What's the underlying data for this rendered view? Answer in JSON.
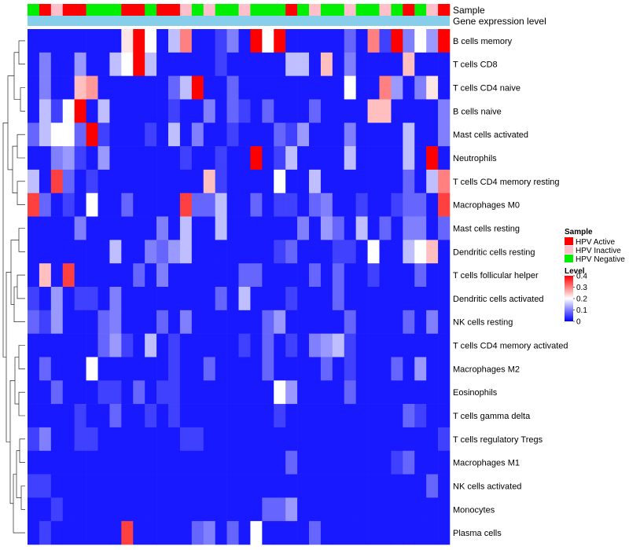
{
  "chart_data": {
    "type": "heatmap",
    "annotation_labels": [
      "Sample",
      "Gene expression level"
    ],
    "rows": [
      "B cells memory",
      "T cells CD8",
      "T cells CD4 naive",
      "B cells naive",
      "Mast cells activated",
      "Neutrophils",
      "T cells CD4 memory resting",
      "Macrophages M0",
      "Mast cells resting",
      "Dendritic cells resting",
      "T cells follicular helper",
      "Dendritic cells activated",
      "NK cells resting",
      "T cells CD4 memory activated",
      "Macrophages M2",
      "Eosinophils",
      "T cells gamma delta",
      "T cells regulatory  Tregs",
      "Macrophages M1",
      "NK cells activated",
      "Monocytes",
      "Plasma cells"
    ],
    "sample_groups": [
      "Negative",
      "Active",
      "Inactive",
      "Active",
      "Active",
      "Negative",
      "Negative",
      "Negative",
      "Active",
      "Active",
      "Negative",
      "Active",
      "Active",
      "Inactive",
      "Negative",
      "Inactive",
      "Negative",
      "Negative",
      "Inactive",
      "Negative",
      "Negative",
      "Negative",
      "Active",
      "Negative",
      "Inactive",
      "Negative",
      "Negative",
      "Inactive",
      "Negative",
      "Negative",
      "Inactive",
      "Negative",
      "Active",
      "Negative",
      "Inactive",
      "Active"
    ],
    "values": [
      [
        0.02,
        0.02,
        0.02,
        0.02,
        0.02,
        0.02,
        0.02,
        0.02,
        0.22,
        0.4,
        0.2,
        0.02,
        0.15,
        0.3,
        0.02,
        0.02,
        0.05,
        0.1,
        0.02,
        0.4,
        0.2,
        0.4,
        0.02,
        0.02,
        0.02,
        0.02,
        0.02,
        0.08,
        0.02,
        0.3,
        0.05,
        0.4,
        0.1,
        0.2,
        0.12,
        0.4
      ],
      [
        0.02,
        0.1,
        0.02,
        0.02,
        0.12,
        0.02,
        0.02,
        0.15,
        0.2,
        0.4,
        0.15,
        0.02,
        0.02,
        0.02,
        0.02,
        0.02,
        0.05,
        0.02,
        0.02,
        0.02,
        0.02,
        0.02,
        0.15,
        0.15,
        0.02,
        0.25,
        0.02,
        0.1,
        0.02,
        0.02,
        0.02,
        0.02,
        0.25,
        0.02,
        0.02,
        0.02
      ],
      [
        0.02,
        0.1,
        0.02,
        0.02,
        0.25,
        0.28,
        0.02,
        0.02,
        0.02,
        0.02,
        0.02,
        0.02,
        0.08,
        0.15,
        0.4,
        0.02,
        0.02,
        0.08,
        0.02,
        0.02,
        0.02,
        0.02,
        0.02,
        0.02,
        0.02,
        0.02,
        0.02,
        0.2,
        0.02,
        0.02,
        0.3,
        0.12,
        0.02,
        0.1,
        0.22,
        0.02
      ],
      [
        0.02,
        0.15,
        0.05,
        0.2,
        0.4,
        0.02,
        0.15,
        0.02,
        0.02,
        0.02,
        0.02,
        0.02,
        0.05,
        0.02,
        0.02,
        0.1,
        0.02,
        0.08,
        0.05,
        0.02,
        0.08,
        0.02,
        0.02,
        0.02,
        0.08,
        0.02,
        0.02,
        0.02,
        0.02,
        0.25,
        0.25,
        0.02,
        0.02,
        0.02,
        0.02,
        0.1
      ],
      [
        0.08,
        0.15,
        0.2,
        0.2,
        0.08,
        0.4,
        0.05,
        0.02,
        0.02,
        0.02,
        0.05,
        0.02,
        0.15,
        0.02,
        0.1,
        0.02,
        0.02,
        0.05,
        0.02,
        0.02,
        0.02,
        0.08,
        0.05,
        0.12,
        0.02,
        0.02,
        0.02,
        0.1,
        0.02,
        0.02,
        0.02,
        0.02,
        0.15,
        0.02,
        0.02,
        0.1
      ],
      [
        0.02,
        0.02,
        0.1,
        0.12,
        0.05,
        0.02,
        0.12,
        0.02,
        0.02,
        0.02,
        0.02,
        0.02,
        0.02,
        0.05,
        0.02,
        0.02,
        0.05,
        0.02,
        0.02,
        0.4,
        0.02,
        0.05,
        0.15,
        0.02,
        0.02,
        0.02,
        0.02,
        0.15,
        0.02,
        0.02,
        0.02,
        0.02,
        0.15,
        0.02,
        0.4,
        0.02
      ],
      [
        0.15,
        0.02,
        0.35,
        0.08,
        0.02,
        0.05,
        0.02,
        0.02,
        0.02,
        0.02,
        0.02,
        0.02,
        0.02,
        0.02,
        0.02,
        0.25,
        0.05,
        0.02,
        0.02,
        0.02,
        0.02,
        0.2,
        0.02,
        0.02,
        0.15,
        0.02,
        0.02,
        0.02,
        0.02,
        0.02,
        0.02,
        0.02,
        0.08,
        0.02,
        0.15,
        0.3
      ],
      [
        0.35,
        0.08,
        0.02,
        0.05,
        0.02,
        0.2,
        0.02,
        0.02,
        0.08,
        0.02,
        0.02,
        0.02,
        0.02,
        0.35,
        0.08,
        0.08,
        0.15,
        0.02,
        0.02,
        0.08,
        0.02,
        0.05,
        0.05,
        0.02,
        0.08,
        0.1,
        0.02,
        0.02,
        0.05,
        0.02,
        0.02,
        0.05,
        0.08,
        0.08,
        0.02,
        0.35
      ],
      [
        0.02,
        0.02,
        0.02,
        0.02,
        0.1,
        0.02,
        0.02,
        0.02,
        0.02,
        0.02,
        0.02,
        0.1,
        0.02,
        0.15,
        0.02,
        0.02,
        0.15,
        0.02,
        0.02,
        0.02,
        0.02,
        0.02,
        0.02,
        0.1,
        0.02,
        0.12,
        0.08,
        0.02,
        0.15,
        0.02,
        0.08,
        0.02,
        0.1,
        0.1,
        0.02,
        0.08
      ],
      [
        0.02,
        0.02,
        0.02,
        0.02,
        0.02,
        0.02,
        0.02,
        0.15,
        0.02,
        0.02,
        0.1,
        0.08,
        0.12,
        0.15,
        0.02,
        0.02,
        0.02,
        0.02,
        0.02,
        0.02,
        0.02,
        0.05,
        0.08,
        0.02,
        0.02,
        0.02,
        0.05,
        0.05,
        0.02,
        0.2,
        0.02,
        0.02,
        0.15,
        0.2,
        0.25,
        0.02
      ],
      [
        0.02,
        0.25,
        0.02,
        0.35,
        0.02,
        0.02,
        0.02,
        0.02,
        0.02,
        0.08,
        0.02,
        0.1,
        0.02,
        0.02,
        0.02,
        0.02,
        0.02,
        0.02,
        0.08,
        0.08,
        0.02,
        0.02,
        0.02,
        0.02,
        0.08,
        0.02,
        0.08,
        0.02,
        0.02,
        0.05,
        0.02,
        0.02,
        0.02,
        0.08,
        0.02,
        0.02
      ],
      [
        0.05,
        0.02,
        0.12,
        0.02,
        0.05,
        0.05,
        0.02,
        0.1,
        0.02,
        0.02,
        0.02,
        0.02,
        0.02,
        0.02,
        0.02,
        0.02,
        0.08,
        0.02,
        0.15,
        0.02,
        0.02,
        0.02,
        0.05,
        0.02,
        0.02,
        0.02,
        0.08,
        0.02,
        0.02,
        0.02,
        0.02,
        0.02,
        0.02,
        0.02,
        0.02,
        0.02
      ],
      [
        0.08,
        0.05,
        0.12,
        0.02,
        0.02,
        0.02,
        0.08,
        0.1,
        0.02,
        0.02,
        0.02,
        0.08,
        0.02,
        0.1,
        0.02,
        0.02,
        0.02,
        0.02,
        0.02,
        0.02,
        0.08,
        0.12,
        0.02,
        0.02,
        0.02,
        0.02,
        0.02,
        0.08,
        0.02,
        0.02,
        0.02,
        0.02,
        0.08,
        0.02,
        0.1,
        0.02
      ],
      [
        0.02,
        0.02,
        0.02,
        0.02,
        0.02,
        0.02,
        0.08,
        0.12,
        0.05,
        0.02,
        0.15,
        0.02,
        0.05,
        0.02,
        0.02,
        0.02,
        0.02,
        0.02,
        0.05,
        0.02,
        0.08,
        0.02,
        0.05,
        0.02,
        0.1,
        0.12,
        0.15,
        0.05,
        0.02,
        0.02,
        0.02,
        0.02,
        0.02,
        0.02,
        0.02,
        0.02
      ],
      [
        0.02,
        0.08,
        0.02,
        0.02,
        0.02,
        0.2,
        0.02,
        0.02,
        0.02,
        0.02,
        0.02,
        0.02,
        0.05,
        0.02,
        0.02,
        0.08,
        0.02,
        0.02,
        0.02,
        0.02,
        0.08,
        0.02,
        0.02,
        0.02,
        0.02,
        0.08,
        0.02,
        0.05,
        0.02,
        0.02,
        0.02,
        0.08,
        0.02,
        0.12,
        0.02,
        0.02
      ],
      [
        0.02,
        0.02,
        0.08,
        0.02,
        0.02,
        0.02,
        0.05,
        0.05,
        0.02,
        0.08,
        0.02,
        0.05,
        0.05,
        0.02,
        0.02,
        0.02,
        0.02,
        0.02,
        0.02,
        0.02,
        0.02,
        0.2,
        0.12,
        0.02,
        0.02,
        0.02,
        0.02,
        0.08,
        0.02,
        0.02,
        0.02,
        0.02,
        0.02,
        0.02,
        0.02,
        0.02
      ],
      [
        0.02,
        0.02,
        0.02,
        0.02,
        0.05,
        0.02,
        0.02,
        0.08,
        0.02,
        0.02,
        0.05,
        0.02,
        0.05,
        0.02,
        0.02,
        0.02,
        0.02,
        0.02,
        0.02,
        0.02,
        0.02,
        0.05,
        0.02,
        0.02,
        0.02,
        0.02,
        0.02,
        0.02,
        0.02,
        0.02,
        0.02,
        0.02,
        0.08,
        0.05,
        0.02,
        0.02
      ],
      [
        0.05,
        0.1,
        0.02,
        0.02,
        0.05,
        0.05,
        0.02,
        0.02,
        0.02,
        0.02,
        0.02,
        0.02,
        0.02,
        0.05,
        0.05,
        0.02,
        0.02,
        0.02,
        0.02,
        0.02,
        0.02,
        0.02,
        0.02,
        0.02,
        0.02,
        0.02,
        0.02,
        0.02,
        0.02,
        0.02,
        0.02,
        0.02,
        0.02,
        0.02,
        0.02,
        0.05
      ],
      [
        0.02,
        0.02,
        0.02,
        0.02,
        0.02,
        0.02,
        0.02,
        0.02,
        0.02,
        0.02,
        0.02,
        0.02,
        0.02,
        0.02,
        0.02,
        0.02,
        0.02,
        0.02,
        0.02,
        0.02,
        0.02,
        0.02,
        0.08,
        0.02,
        0.02,
        0.02,
        0.02,
        0.02,
        0.02,
        0.02,
        0.02,
        0.05,
        0.08,
        0.02,
        0.02,
        0.02
      ],
      [
        0.05,
        0.05,
        0.02,
        0.02,
        0.02,
        0.02,
        0.02,
        0.02,
        0.02,
        0.02,
        0.02,
        0.02,
        0.02,
        0.02,
        0.02,
        0.02,
        0.02,
        0.02,
        0.02,
        0.02,
        0.02,
        0.02,
        0.02,
        0.02,
        0.02,
        0.02,
        0.02,
        0.02,
        0.02,
        0.02,
        0.02,
        0.02,
        0.02,
        0.02,
        0.08,
        0.02
      ],
      [
        0.02,
        0.02,
        0.05,
        0.02,
        0.02,
        0.02,
        0.02,
        0.02,
        0.02,
        0.02,
        0.02,
        0.02,
        0.02,
        0.02,
        0.02,
        0.02,
        0.02,
        0.02,
        0.02,
        0.02,
        0.08,
        0.08,
        0.12,
        0.02,
        0.02,
        0.02,
        0.02,
        0.02,
        0.02,
        0.02,
        0.02,
        0.02,
        0.02,
        0.02,
        0.02,
        0.02
      ],
      [
        0.02,
        0.05,
        0.02,
        0.02,
        0.02,
        0.02,
        0.02,
        0.02,
        0.35,
        0.02,
        0.02,
        0.02,
        0.02,
        0.02,
        0.08,
        0.1,
        0.02,
        0.08,
        0.02,
        0.2,
        0.02,
        0.02,
        0.02,
        0.02,
        0.08,
        0.02,
        0.02,
        0.02,
        0.02,
        0.02,
        0.02,
        0.02,
        0.02,
        0.02,
        0.02,
        0.02
      ]
    ],
    "legend_sample": {
      "title": "Sample",
      "items": [
        {
          "label": "HPV Active",
          "color": "#ff0000"
        },
        {
          "label": "HPV Inactive",
          "color": "#ffc0cb"
        },
        {
          "label": "HPV Negative",
          "color": "#00ee00"
        }
      ]
    },
    "legend_level": {
      "title": "Level",
      "ticks": [
        "0.4",
        "0.3",
        "0.2",
        "0.1",
        "0"
      ],
      "min": 0,
      "max": 0.4,
      "colors": [
        "#0000ff",
        "#ffffff",
        "#ff0000"
      ]
    },
    "expression_bar_color": "#87ceeb",
    "dendrogram": true
  }
}
